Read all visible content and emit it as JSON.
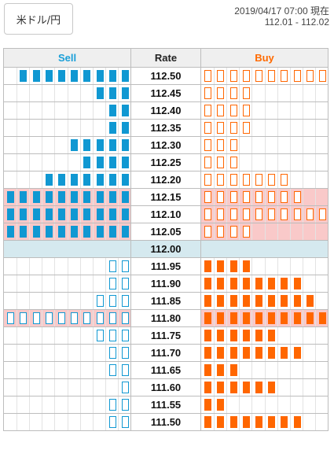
{
  "header": {
    "pair_label": "米ドル/円",
    "timestamp": "2019/04/17 07:00",
    "timestamp_suffix": "現在",
    "range": "112.01 - 112.02"
  },
  "table": {
    "sell_header": "Sell",
    "rate_header": "Rate",
    "buy_header": "Buy",
    "slots_per_side": 10,
    "rows": [
      {
        "rate": "112.50",
        "sell_filled": 9,
        "sell_outline": 0,
        "buy_filled": 0,
        "buy_outline": 10,
        "highlight": false
      },
      {
        "rate": "112.45",
        "sell_filled": 3,
        "sell_outline": 0,
        "buy_filled": 0,
        "buy_outline": 4,
        "highlight": false
      },
      {
        "rate": "112.40",
        "sell_filled": 2,
        "sell_outline": 0,
        "buy_filled": 0,
        "buy_outline": 4,
        "highlight": false
      },
      {
        "rate": "112.35",
        "sell_filled": 2,
        "sell_outline": 0,
        "buy_filled": 0,
        "buy_outline": 4,
        "highlight": false
      },
      {
        "rate": "112.30",
        "sell_filled": 5,
        "sell_outline": 0,
        "buy_filled": 0,
        "buy_outline": 3,
        "highlight": false
      },
      {
        "rate": "112.25",
        "sell_filled": 4,
        "sell_outline": 0,
        "buy_filled": 0,
        "buy_outline": 3,
        "highlight": false
      },
      {
        "rate": "112.20",
        "sell_filled": 7,
        "sell_outline": 0,
        "buy_filled": 0,
        "buy_outline": 7,
        "highlight": false
      },
      {
        "rate": "112.15",
        "sell_filled": 10,
        "sell_outline": 0,
        "buy_filled": 0,
        "buy_outline": 8,
        "highlight": true
      },
      {
        "rate": "112.10",
        "sell_filled": 10,
        "sell_outline": 0,
        "buy_filled": 0,
        "buy_outline": 10,
        "highlight": true
      },
      {
        "rate": "112.05",
        "sell_filled": 10,
        "sell_outline": 0,
        "buy_filled": 0,
        "buy_outline": 4,
        "highlight": true
      },
      {
        "rate": "112.00",
        "sell_filled": 0,
        "sell_outline": 0,
        "buy_filled": 0,
        "buy_outline": 0,
        "highlight": false,
        "current": true
      },
      {
        "rate": "111.95",
        "sell_filled": 0,
        "sell_outline": 2,
        "buy_filled": 4,
        "buy_outline": 0,
        "highlight": false
      },
      {
        "rate": "111.90",
        "sell_filled": 0,
        "sell_outline": 2,
        "buy_filled": 8,
        "buy_outline": 0,
        "highlight": false
      },
      {
        "rate": "111.85",
        "sell_filled": 0,
        "sell_outline": 3,
        "buy_filled": 9,
        "buy_outline": 0,
        "highlight": false
      },
      {
        "rate": "111.80",
        "sell_filled": 0,
        "sell_outline": 10,
        "buy_filled": 10,
        "buy_outline": 0,
        "highlight": true
      },
      {
        "rate": "111.75",
        "sell_filled": 0,
        "sell_outline": 3,
        "buy_filled": 6,
        "buy_outline": 0,
        "highlight": false
      },
      {
        "rate": "111.70",
        "sell_filled": 0,
        "sell_outline": 2,
        "buy_filled": 8,
        "buy_outline": 0,
        "highlight": false
      },
      {
        "rate": "111.65",
        "sell_filled": 0,
        "sell_outline": 2,
        "buy_filled": 3,
        "buy_outline": 0,
        "highlight": false
      },
      {
        "rate": "111.60",
        "sell_filled": 0,
        "sell_outline": 1,
        "buy_filled": 6,
        "buy_outline": 0,
        "highlight": false
      },
      {
        "rate": "111.55",
        "sell_filled": 0,
        "sell_outline": 2,
        "buy_filled": 2,
        "buy_outline": 0,
        "highlight": false
      },
      {
        "rate": "111.50",
        "sell_filled": 0,
        "sell_outline": 2,
        "buy_filled": 8,
        "buy_outline": 0,
        "highlight": false
      }
    ]
  },
  "colors": {
    "sell": "#1098d2",
    "buy": "#ff6600",
    "highlight": "#f9c9c9",
    "current_row": "#d5e9ef"
  },
  "icons": {
    "sell_filled": "filled-blue-square",
    "sell_outline": "outlined-blue-square",
    "buy_filled": "filled-orange-square",
    "buy_outline": "outlined-orange-square"
  }
}
